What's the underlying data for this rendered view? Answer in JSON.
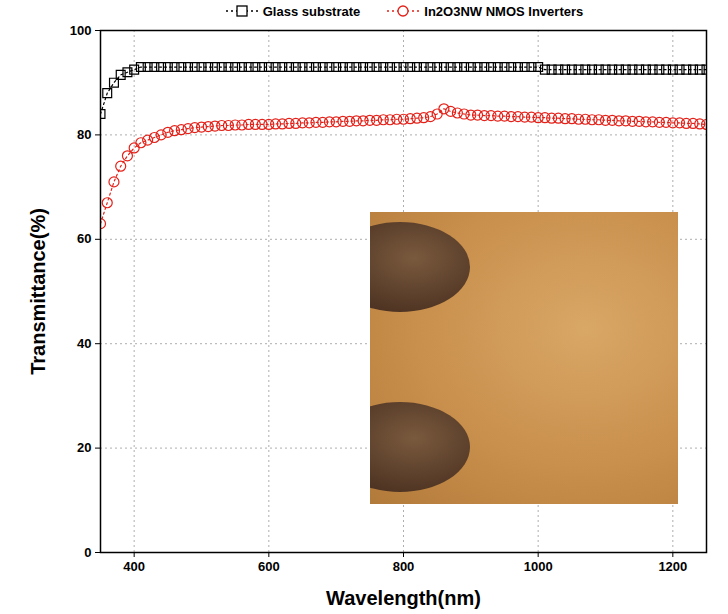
{
  "chart_data": {
    "type": "line",
    "xlabel": "Wavelength(nm)",
    "ylabel": "Transmittance(%)",
    "x": [
      350,
      360,
      370,
      380,
      390,
      400,
      410,
      420,
      430,
      440,
      450,
      460,
      470,
      480,
      490,
      500,
      510,
      520,
      530,
      540,
      550,
      560,
      570,
      580,
      590,
      600,
      610,
      620,
      630,
      640,
      650,
      660,
      670,
      680,
      690,
      700,
      710,
      720,
      730,
      740,
      750,
      760,
      770,
      780,
      790,
      800,
      810,
      820,
      830,
      840,
      850,
      860,
      870,
      880,
      890,
      900,
      910,
      920,
      930,
      940,
      950,
      960,
      970,
      980,
      990,
      1000,
      1010,
      1020,
      1030,
      1040,
      1050,
      1060,
      1070,
      1080,
      1090,
      1100,
      1110,
      1120,
      1130,
      1140,
      1150,
      1160,
      1170,
      1180,
      1190,
      1200,
      1210,
      1220,
      1230,
      1240,
      1250
    ],
    "series": [
      {
        "name": "Glass substrate",
        "color": "#000000",
        "marker": "square",
        "line_style": "dotted",
        "values": [
          84,
          88,
          90,
          91.5,
          92,
          92.5,
          93,
          93,
          93,
          93,
          93,
          93,
          93,
          93,
          93,
          93,
          93,
          93,
          93,
          93,
          93,
          93,
          93,
          93,
          93,
          93,
          93,
          93,
          93,
          93,
          93,
          93,
          93,
          93,
          93,
          93,
          93,
          93,
          93,
          93,
          93,
          93,
          93,
          93,
          93,
          93,
          93,
          93,
          93,
          93,
          93,
          93,
          93,
          93,
          93,
          93,
          93,
          93,
          93,
          93,
          93,
          93,
          93,
          93,
          93,
          93,
          92.5,
          92.5,
          92.5,
          92.5,
          92.5,
          92.5,
          92.5,
          92.5,
          92.5,
          92.5,
          92.5,
          92.5,
          92.5,
          92.5,
          92.5,
          92.5,
          92.5,
          92.5,
          92.5,
          92.5,
          92.5,
          92.5,
          92.5,
          92.5,
          92.5
        ]
      },
      {
        "name": "In2O3NW NMOS Inverters",
        "color": "#e32119",
        "marker": "circle",
        "line_style": "dotted",
        "values": [
          63,
          67,
          71,
          74,
          76,
          77.5,
          78.5,
          79,
          79.5,
          80,
          80.5,
          80.8,
          81,
          81.2,
          81.4,
          81.5,
          81.6,
          81.7,
          81.8,
          81.8,
          81.9,
          81.9,
          82,
          82,
          82,
          82,
          82.1,
          82.1,
          82.2,
          82.2,
          82.3,
          82.3,
          82.4,
          82.4,
          82.5,
          82.5,
          82.6,
          82.6,
          82.7,
          82.7,
          82.8,
          82.8,
          82.9,
          82.9,
          83,
          83,
          83.1,
          83.2,
          83.3,
          83.5,
          84,
          85,
          84.5,
          84.2,
          84,
          83.8,
          83.8,
          83.7,
          83.7,
          83.6,
          83.6,
          83.5,
          83.5,
          83.4,
          83.4,
          83.3,
          83.3,
          83.2,
          83.2,
          83.1,
          83.1,
          83,
          83,
          82.9,
          82.9,
          82.8,
          82.8,
          82.7,
          82.7,
          82.6,
          82.6,
          82.5,
          82.5,
          82.4,
          82.4,
          82.3,
          82.3,
          82.2,
          82.2,
          82.1,
          82
        ]
      }
    ],
    "xlim": [
      350,
      1250
    ],
    "ylim": [
      0,
      100
    ],
    "xticks": [
      400,
      600,
      800,
      1000,
      1200
    ],
    "yticks": [
      0,
      20,
      40,
      60,
      80,
      100
    ],
    "grid": true,
    "legend": "top"
  }
}
